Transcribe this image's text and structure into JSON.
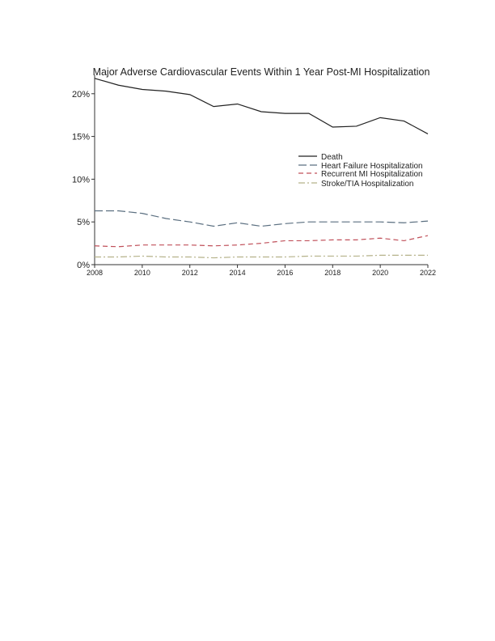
{
  "chart_data": {
    "type": "line",
    "title": "Major Adverse Cardiovascular Events Within 1 Year Post-MI Hospitalization",
    "xlabel": "",
    "ylabel": "",
    "x": [
      2008,
      2009,
      2010,
      2011,
      2012,
      2013,
      2014,
      2015,
      2016,
      2017,
      2018,
      2019,
      2020,
      2021,
      2022
    ],
    "xticks": [
      "2008",
      "2010",
      "2012",
      "2014",
      "2016",
      "2018",
      "2020",
      "2022"
    ],
    "yticks": [
      "0%",
      "5%",
      "10%",
      "15%",
      "20%"
    ],
    "ylim": [
      0,
      22
    ],
    "xlim": [
      2008,
      2022
    ],
    "grid": false,
    "legend_position": "right-middle",
    "series": [
      {
        "name": "Death",
        "color": "#222222",
        "dash": "",
        "values": [
          21.8,
          21.0,
          20.5,
          20.3,
          19.9,
          18.5,
          18.8,
          17.9,
          17.7,
          17.7,
          16.1,
          16.2,
          17.2,
          16.8,
          15.3
        ]
      },
      {
        "name": "Heart Failure Hospitalization",
        "color": "#5b6f80",
        "dash": "10 4",
        "values": [
          6.3,
          6.3,
          6.0,
          5.4,
          5.0,
          4.5,
          4.9,
          4.5,
          4.8,
          5.0,
          5.0,
          5.0,
          5.0,
          4.9,
          5.1
        ]
      },
      {
        "name": "Recurrent MI Hospitalization",
        "color": "#c0505a",
        "dash": "6 4",
        "values": [
          2.2,
          2.1,
          2.3,
          2.3,
          2.3,
          2.2,
          2.3,
          2.5,
          2.8,
          2.8,
          2.9,
          2.9,
          3.1,
          2.8,
          3.4
        ]
      },
      {
        "name": "Stroke/TIA Hospitalization",
        "color": "#b5b28a",
        "dash": "8 3 2 3",
        "values": [
          0.9,
          0.9,
          1.0,
          0.9,
          0.9,
          0.8,
          0.9,
          0.9,
          0.9,
          1.0,
          1.0,
          1.0,
          1.1,
          1.1,
          1.1
        ]
      }
    ]
  }
}
